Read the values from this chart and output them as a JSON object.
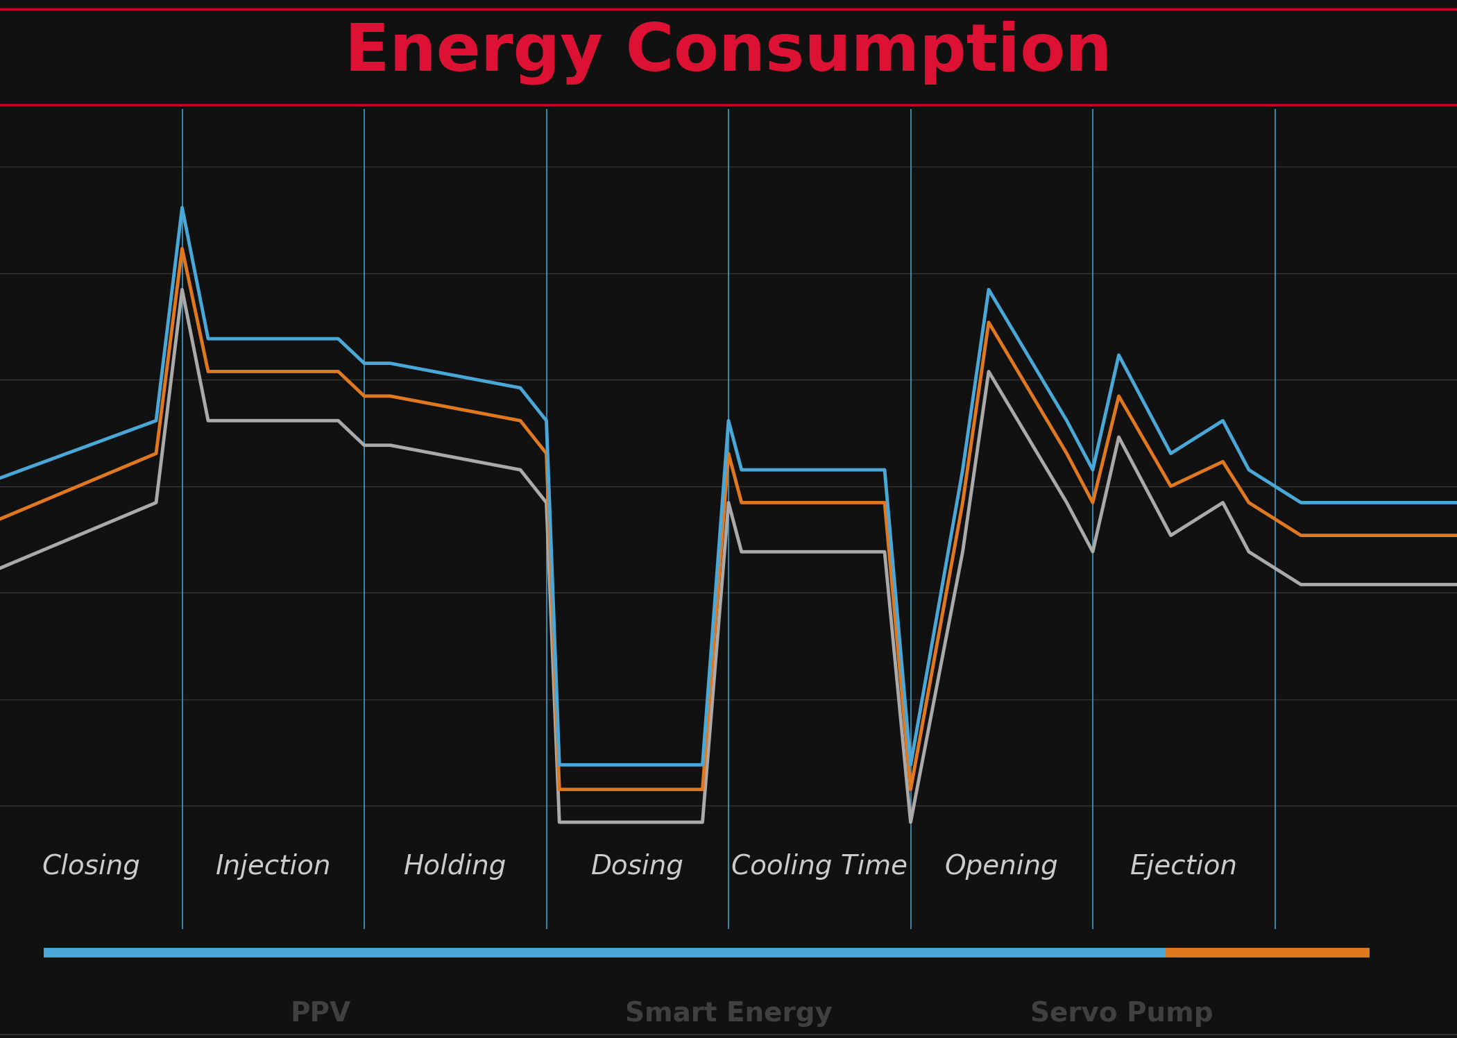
{
  "title": "Energy Consumption",
  "title_color": "#DD1133",
  "title_fontsize": 68,
  "bg_color": "#111111",
  "chart_bg_color": "#3d3d3d",
  "line_color_blue": "#4aa8d8",
  "line_color_orange": "#e07820",
  "line_color_gray": "#aaaaaa",
  "line_width": 3.5,
  "grid_color_h": "#666666",
  "grid_color_v": "#4aa8d8",
  "red_line_color": "#cc0022",
  "bottom_bar_blue": "#4aa8d8",
  "bottom_bar_orange": "#e07820",
  "category_labels": [
    "Closing",
    "Injection",
    "Holding",
    "Dosing",
    "Cooling Time",
    "Opening",
    "Ejection"
  ],
  "label_fontsize": 28,
  "label_color": "#cccccc",
  "legend_labels": [
    "PPV",
    "Smart Energy",
    "Servo Pump"
  ],
  "vline_x": [
    14,
    28,
    42,
    56,
    70,
    84,
    98
  ],
  "xlim": [
    0,
    112
  ],
  "ylim": [
    0,
    100
  ],
  "blue_x": [
    0,
    12,
    14,
    16,
    26,
    28,
    30,
    40,
    42,
    43,
    54,
    56,
    57,
    68,
    70,
    74,
    76,
    82,
    84,
    86,
    90,
    94,
    96,
    100,
    112
  ],
  "blue_y": [
    55,
    62,
    88,
    72,
    72,
    69,
    69,
    66,
    62,
    20,
    20,
    62,
    56,
    56,
    20,
    56,
    78,
    62,
    56,
    70,
    58,
    62,
    56,
    52,
    52
  ],
  "orange_x": [
    0,
    12,
    14,
    16,
    26,
    28,
    30,
    40,
    42,
    43,
    54,
    56,
    57,
    68,
    70,
    74,
    76,
    82,
    84,
    86,
    90,
    94,
    96,
    100,
    112
  ],
  "orange_y": [
    50,
    58,
    83,
    68,
    68,
    65,
    65,
    62,
    58,
    17,
    17,
    58,
    52,
    52,
    17,
    52,
    74,
    58,
    52,
    65,
    54,
    57,
    52,
    48,
    48
  ],
  "gray_x": [
    0,
    12,
    14,
    16,
    26,
    28,
    30,
    40,
    42,
    43,
    54,
    56,
    57,
    68,
    70,
    74,
    76,
    82,
    84,
    86,
    90,
    94,
    96,
    100,
    112
  ],
  "gray_y": [
    44,
    52,
    78,
    62,
    62,
    59,
    59,
    56,
    52,
    13,
    13,
    52,
    46,
    46,
    13,
    46,
    68,
    52,
    46,
    60,
    48,
    52,
    46,
    42,
    42
  ]
}
